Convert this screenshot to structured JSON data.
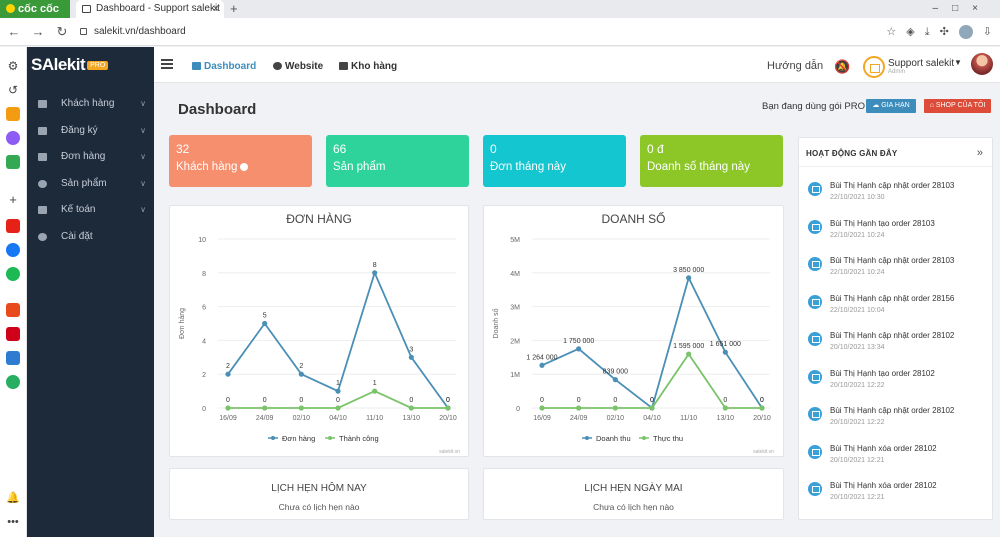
{
  "browser": {
    "brand": "cốc cốc",
    "tab_title": "Dashboard - Support salekit",
    "url": "salekit.vn/dashboard"
  },
  "sidebar": {
    "logo": "SAlekit",
    "logo_badge": "PRO",
    "items": [
      {
        "label": "Khách hàng",
        "has_children": true
      },
      {
        "label": "Đăng ký",
        "has_children": true
      },
      {
        "label": "Đơn hàng",
        "has_children": true
      },
      {
        "label": "Sản phẩm",
        "has_children": true
      },
      {
        "label": "Kế toán",
        "has_children": true
      },
      {
        "label": "Cài đặt",
        "has_children": false
      }
    ]
  },
  "header": {
    "nav": [
      "Dashboard",
      "Website",
      "Kho hàng"
    ],
    "guide": "Hướng dẫn",
    "account_name": "Support salekit",
    "account_role": "Admin"
  },
  "page": {
    "title": "Dashboard",
    "plan_note": "Bạn đang dùng gói PRO",
    "renew_label": "GIA HẠN",
    "shop_label": "SHOP CỦA TÔI"
  },
  "stats": [
    {
      "value": "32",
      "label": "Khách hàng",
      "color": "#f58f6e"
    },
    {
      "value": "66",
      "label": "Sản phẩm",
      "color": "#2ed39b"
    },
    {
      "value": "0",
      "label": "Đơn tháng này",
      "color": "#14c6d0"
    },
    {
      "value": "0 đ",
      "label": "Doanh số tháng này",
      "color": "#8cc727"
    }
  ],
  "chart_data": [
    {
      "type": "line",
      "title": "ĐƠN HÀNG",
      "ylabel": "Đơn hàng",
      "categories": [
        "16/09",
        "24/09",
        "02/10",
        "04/10",
        "11/10",
        "13/10",
        "20/10"
      ],
      "ylim": [
        0,
        10
      ],
      "yticks": [
        "0",
        "2",
        "4",
        "6",
        "8",
        "10"
      ],
      "series": [
        {
          "name": "Đơn hàng",
          "values": [
            2,
            5,
            2,
            1,
            8,
            3,
            0
          ],
          "labels": [
            "2",
            "5",
            "2",
            "1",
            "8",
            "3",
            "0"
          ],
          "color": "#4a8fb5"
        },
        {
          "name": "Thành công",
          "values": [
            0,
            0,
            0,
            0,
            1,
            0,
            0
          ],
          "labels": [
            "0",
            "0",
            "0",
            "0",
            "1",
            "0",
            "0"
          ],
          "color": "#7ac36a"
        }
      ],
      "legend": "bottom",
      "credit": "salekit.vn"
    },
    {
      "type": "line",
      "title": "DOANH SỐ",
      "ylabel": "Doanh số",
      "categories": [
        "16/09",
        "24/09",
        "02/10",
        "04/10",
        "11/10",
        "13/10",
        "20/10"
      ],
      "ylim": [
        0,
        5000000
      ],
      "yticks": [
        "0",
        "1M",
        "2M",
        "3M",
        "4M",
        "5M"
      ],
      "series": [
        {
          "name": "Doanh thu",
          "values": [
            1264000,
            1750000,
            839000,
            0,
            3850000,
            1651000,
            0
          ],
          "labels": [
            "1 264 000",
            "1 750 000",
            "839 000",
            "0",
            "3 850 000",
            "1 651 000",
            "0"
          ],
          "color": "#4a8fb5"
        },
        {
          "name": "Thực thu",
          "values": [
            0,
            0,
            0,
            0,
            1595000,
            0,
            0
          ],
          "labels": [
            "0",
            "0",
            "0",
            "0",
            "1 595 000",
            "0",
            "0"
          ],
          "color": "#7ac36a"
        }
      ],
      "legend": "bottom",
      "credit": "salekit.vn"
    }
  ],
  "appointments": {
    "today_title": "LỊCH HẸN HÔM NAY",
    "today_empty": "Chưa có lịch hẹn nào",
    "tomorrow_title": "LỊCH HẸN NGÀY MAI",
    "tomorrow_empty": "Chưa có lịch hẹn nào"
  },
  "activity": {
    "title": "HOẠT ĐỘNG GẦN ĐÂY",
    "items": [
      {
        "text": "Bùi Thị Hạnh cập nhật order 28103",
        "time": "22/10/2021 10:30"
      },
      {
        "text": "Bùi Thị Hạnh tạo order 28103",
        "time": "22/10/2021 10:24"
      },
      {
        "text": "Bùi Thị Hạnh cập nhật order 28103",
        "time": "22/10/2021 10:24"
      },
      {
        "text": "Bùi Thị Hạnh cập nhật order 28156",
        "time": "22/10/2021 10:04"
      },
      {
        "text": "Bùi Thị Hạnh cập nhật order 28102",
        "time": "20/10/2021 13:34"
      },
      {
        "text": "Bùi Thị Hạnh tạo order 28102",
        "time": "20/10/2021 12:22"
      },
      {
        "text": "Bùi Thị Hạnh cập nhật order 28102",
        "time": "20/10/2021 12:22"
      },
      {
        "text": "Bùi Thị Hạnh xóa order 28102",
        "time": "20/10/2021 12:21"
      },
      {
        "text": "Bùi Thị Hạnh xóa order 28102",
        "time": "20/10/2021 12:21"
      }
    ]
  }
}
